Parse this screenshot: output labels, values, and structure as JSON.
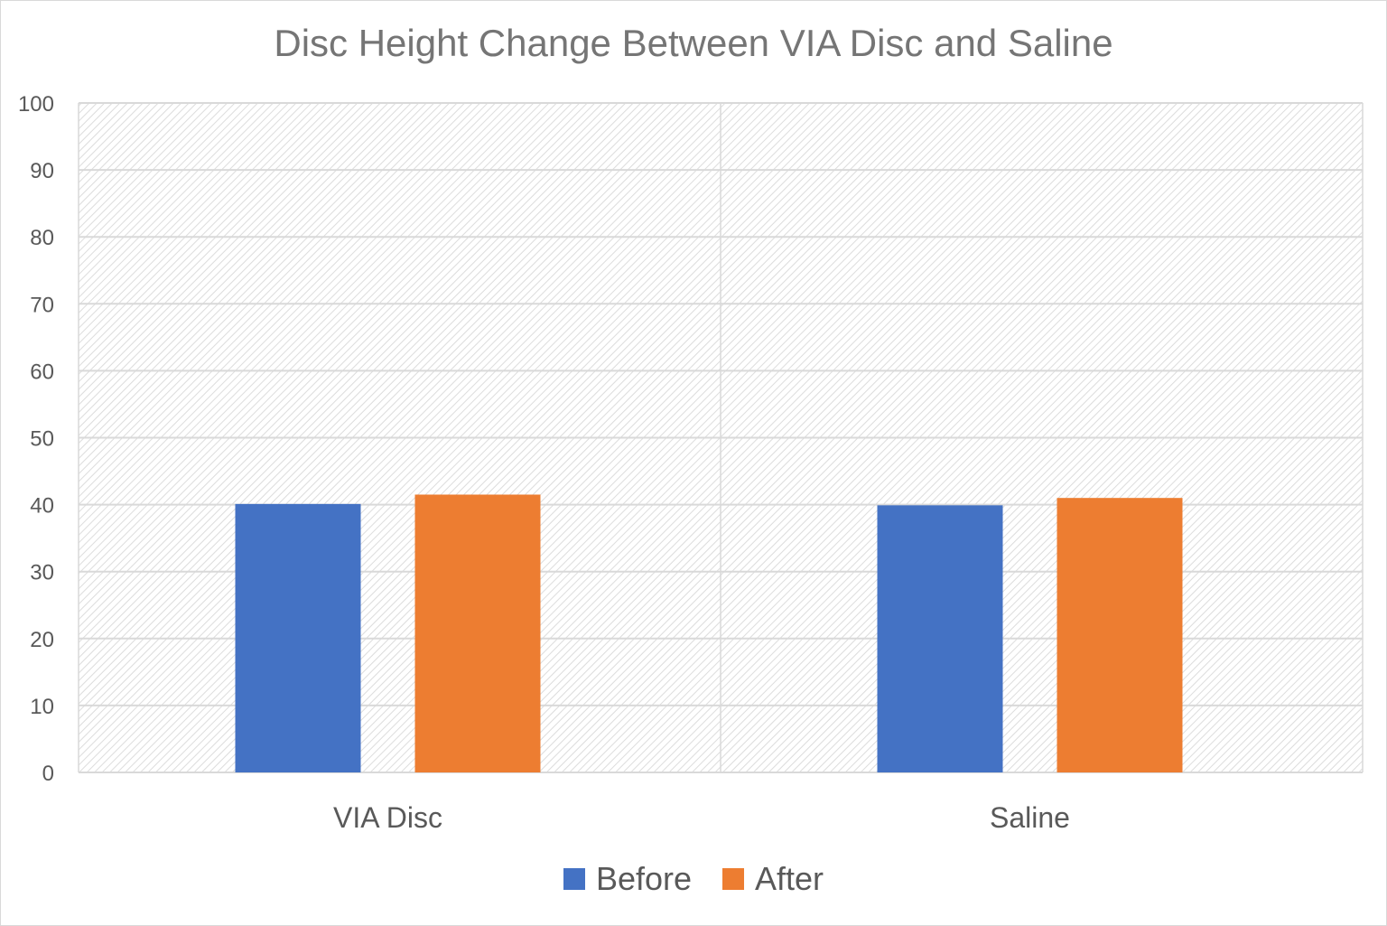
{
  "chart_data": {
    "type": "bar",
    "title": "Disc Height Change Between VIA Disc and Saline",
    "categories": [
      "VIA Disc",
      "Saline"
    ],
    "series": [
      {
        "name": "Before",
        "values": [
          40.1,
          39.9
        ],
        "color": "#4472C4"
      },
      {
        "name": "After",
        "values": [
          41.5,
          41.0
        ],
        "color": "#ED7D31"
      }
    ],
    "ylim": [
      0,
      100
    ],
    "yticks": [
      0,
      10,
      20,
      30,
      40,
      50,
      60,
      70,
      80,
      90,
      100
    ],
    "grid": true,
    "legend": "bottom",
    "xlabel": "",
    "ylabel": ""
  }
}
